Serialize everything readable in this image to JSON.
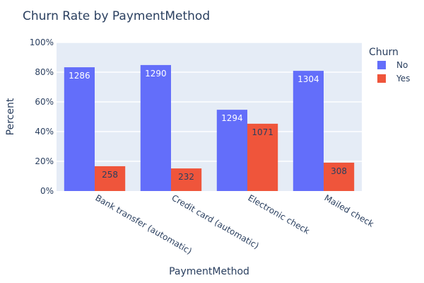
{
  "chart_data": {
    "type": "bar",
    "title": "Churn Rate by PaymentMethod",
    "xlabel": "PaymentMethod",
    "ylabel": "Percent",
    "ylim": [
      0,
      100
    ],
    "yticks": [
      "0%",
      "20%",
      "40%",
      "60%",
      "80%",
      "100%"
    ],
    "y_tick_values": [
      0,
      20,
      40,
      60,
      80,
      100
    ],
    "grid": true,
    "categories": [
      "Bank transfer (automatic)",
      "Credit card (automatic)",
      "Electronic check",
      "Mailed check"
    ],
    "legend": {
      "title": "Churn",
      "placement": "top-right"
    },
    "series": [
      {
        "name": "No",
        "color": "#636efa",
        "values": [
          83.3,
          84.8,
          54.7,
          80.9
        ],
        "labels": [
          "1286",
          "1290",
          "1294",
          "1304"
        ]
      },
      {
        "name": "Yes",
        "color": "#ef553b",
        "values": [
          16.7,
          15.2,
          45.3,
          19.1
        ],
        "labels": [
          "258",
          "232",
          "1071",
          "308"
        ]
      }
    ]
  }
}
